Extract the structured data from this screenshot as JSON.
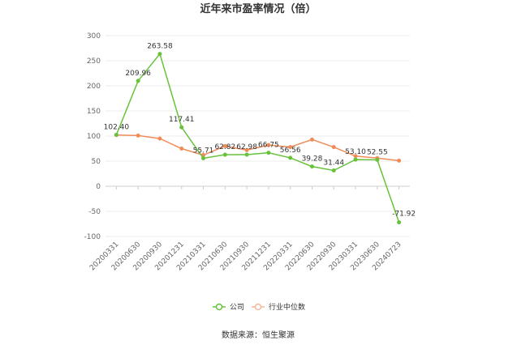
{
  "chart_data": {
    "type": "line",
    "title": "近年来市盈率情况（倍）",
    "categories": [
      "20200331",
      "20200630",
      "20200930",
      "20201231",
      "20210331",
      "20210630",
      "20210930",
      "20211231",
      "20220331",
      "20220630",
      "20220930",
      "20230331",
      "20230630",
      "20240723"
    ],
    "series": [
      {
        "name": "公司",
        "color": "#67c23a",
        "values": [
          102.4,
          209.96,
          263.58,
          117.41,
          55.71,
          62.82,
          62.98,
          66.75,
          56.56,
          39.28,
          31.44,
          53.1,
          52.55,
          -71.92
        ],
        "labels": [
          "102.40",
          "209.96",
          "263.58",
          "117.41",
          "55.71",
          "62.82",
          "62.98",
          "66.75",
          "56.56",
          "39.28",
          "31.44",
          "53.10",
          "52.55",
          "-71.92"
        ]
      },
      {
        "name": "行业中位数",
        "color": "#f08c5a",
        "values": [
          102,
          101,
          95,
          75,
          62,
          80,
          72,
          82,
          78,
          93,
          78,
          60,
          56,
          51
        ]
      }
    ],
    "yticks": [
      "300",
      "250",
      "200",
      "150",
      "100",
      "50",
      "0",
      "-50",
      "-100"
    ],
    "ylim": [
      -100,
      300
    ],
    "grid": true,
    "legend": "bottom-center"
  },
  "source_text": "数据来源：恒生聚源"
}
